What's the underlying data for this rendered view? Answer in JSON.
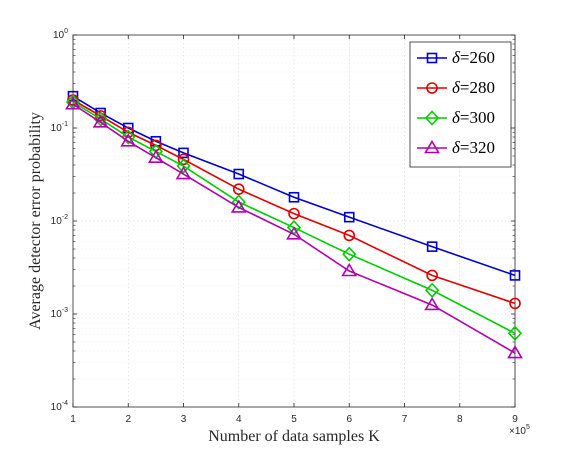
{
  "chart_data": {
    "type": "line",
    "xlabel": "Number of data samples K",
    "ylabel": "Average detector error probability",
    "x_multiplier_label": "×10",
    "x_multiplier_exponent": "5",
    "xlim": [
      1,
      9
    ],
    "ylim": [
      0.0001,
      1
    ],
    "yscale": "log",
    "grid": true,
    "legend_position": "top-right",
    "x_ticks": [
      "1",
      "2",
      "3",
      "4",
      "5",
      "6",
      "7",
      "8",
      "9"
    ],
    "y_ticks": [
      {
        "base": "10",
        "exp": "-4"
      },
      {
        "base": "10",
        "exp": "-3"
      },
      {
        "base": "10",
        "exp": "-2"
      },
      {
        "base": "10",
        "exp": "-1"
      },
      {
        "base": "10",
        "exp": "0"
      }
    ],
    "x": [
      1,
      1.5,
      2,
      2.5,
      3,
      4,
      5,
      6,
      7.5,
      9
    ],
    "series": [
      {
        "name_symbol": "δ",
        "name_value": "=260",
        "color": "#0000CC",
        "marker": "square",
        "values": [
          0.22,
          0.145,
          0.1,
          0.072,
          0.054,
          0.032,
          0.018,
          0.011,
          0.0053,
          0.0026
        ]
      },
      {
        "name_symbol": "δ",
        "name_value": "=280",
        "color": "#E00000",
        "marker": "circle",
        "values": [
          0.2,
          0.135,
          0.09,
          0.065,
          0.046,
          0.022,
          0.012,
          0.007,
          0.0026,
          0.0013
        ]
      },
      {
        "name_symbol": "δ",
        "name_value": "=300",
        "color": "#00CC00",
        "marker": "diamond",
        "values": [
          0.19,
          0.125,
          0.08,
          0.056,
          0.039,
          0.016,
          0.0085,
          0.0044,
          0.0018,
          0.00062
        ]
      },
      {
        "name_symbol": "δ",
        "name_value": "=320",
        "color": "#B000B0",
        "marker": "triangle",
        "values": [
          0.18,
          0.115,
          0.072,
          0.048,
          0.032,
          0.014,
          0.0072,
          0.0029,
          0.00125,
          0.00038
        ]
      }
    ]
  }
}
